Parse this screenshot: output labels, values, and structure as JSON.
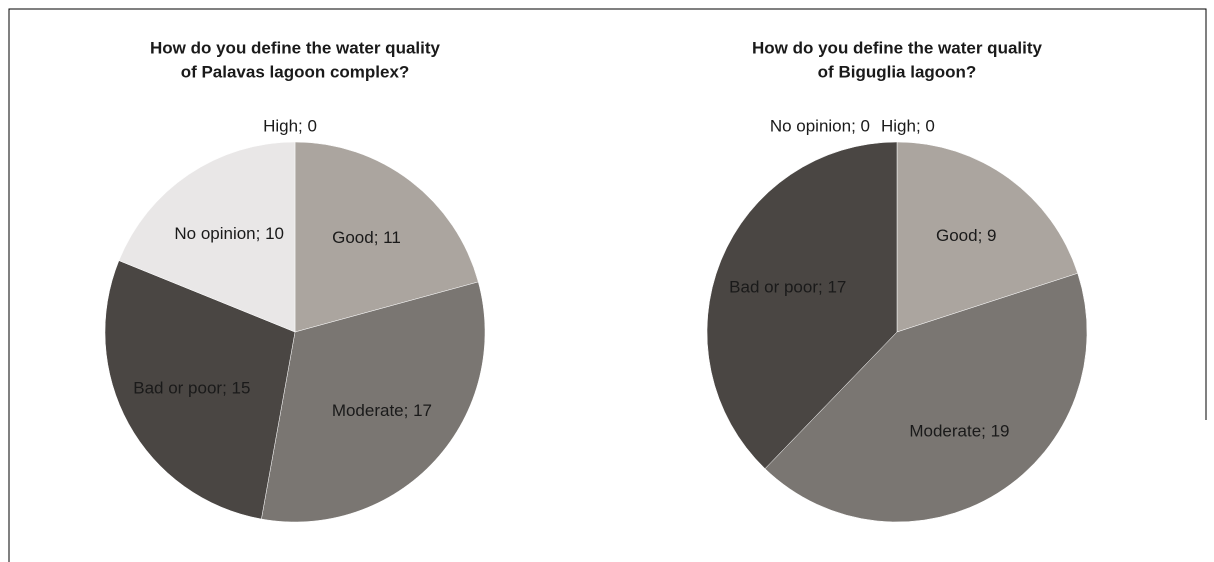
{
  "chart_data": [
    {
      "type": "pie",
      "title": [
        "How do you define the water quality",
        "of Palavas lagoon complex?"
      ],
      "values": [
        0,
        11,
        17,
        15,
        10
      ],
      "value_labels": [
        "High; 0",
        "Good; 11",
        "Moderate; 17",
        "Bad or poor; 15",
        "No opinion; 10"
      ],
      "colors": [
        "#d0ccc8",
        "#aba59f",
        "#7a7672",
        "#4a4643",
        "#e9e7e7"
      ]
    },
    {
      "type": "pie",
      "title": [
        "How do you define the water quality",
        "of Biguglia lagoon?"
      ],
      "values": [
        0,
        9,
        19,
        17,
        0
      ],
      "value_labels": [
        "High; 0",
        "Good; 9",
        "Moderate; 19",
        "Bad or poor; 17",
        "No opinion; 0"
      ],
      "colors": [
        "#d0ccc8",
        "#aba59f",
        "#7a7672",
        "#4a4643",
        "#e9e7e7"
      ]
    }
  ]
}
